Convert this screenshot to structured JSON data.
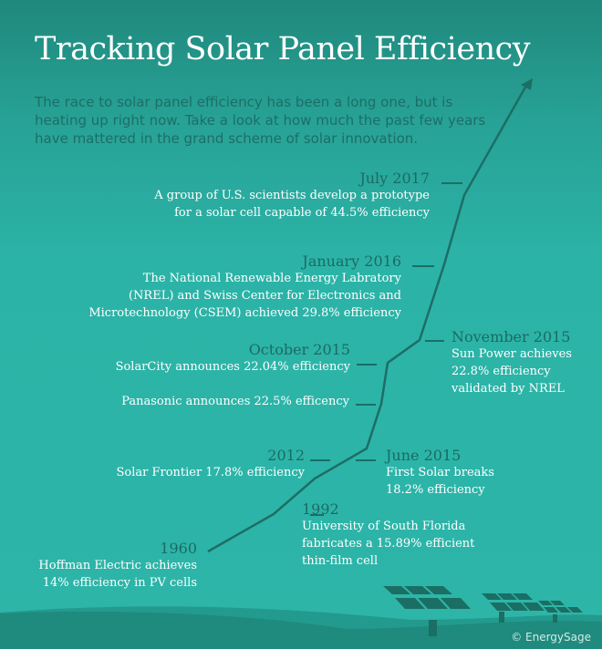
{
  "title": "Tracking Solar Panel Efficiency",
  "intro": "The race to solar panel efficiency has been a long one, but is heating up right now. Take a look at how much the past few years have mattered in the grand scheme of solar innovation.",
  "colors": {
    "background": "#2db5a8",
    "line": "#1d6e66",
    "date_text": "#1b6b62",
    "body_text": "#ffffff",
    "hill": "#208a7e",
    "panel": "#1b6e64"
  },
  "milestones": [
    {
      "date": "1960",
      "text": [
        "Hoffman Electric achieves",
        "14% efficiency in PV cells"
      ]
    },
    {
      "date": "1992",
      "text": [
        "University of South Florida",
        "fabricates a 15.89% efficient",
        "thin-film cell"
      ]
    },
    {
      "date": "2012",
      "text": [
        "Solar Frontier 17.8% efficiency"
      ]
    },
    {
      "date": "June 2015",
      "text": [
        "First Solar breaks",
        "18.2% efficiency"
      ]
    },
    {
      "date": "",
      "text": [
        "Panasonic announces 22.5% efficency"
      ]
    },
    {
      "date": "October 2015",
      "text": [
        "SolarCity announces 22.04% efficiency"
      ]
    },
    {
      "date": "November 2015",
      "text": [
        "Sun Power achieves",
        "22.8% efficiency",
        "validated by NREL"
      ]
    },
    {
      "date": "January 2016",
      "text": [
        "The National Renewable Energy Labratory",
        "(NREL) and Swiss Center for Electronics and",
        "Microtechnology (CSEM) achieved 29.8% efficiency"
      ]
    },
    {
      "date": "July 2017",
      "text": [
        "A group of U.S. scientists develop a prototype",
        "for a solar cell capable of 44.5% efficiency"
      ]
    }
  ],
  "credit": "© EnergySage"
}
